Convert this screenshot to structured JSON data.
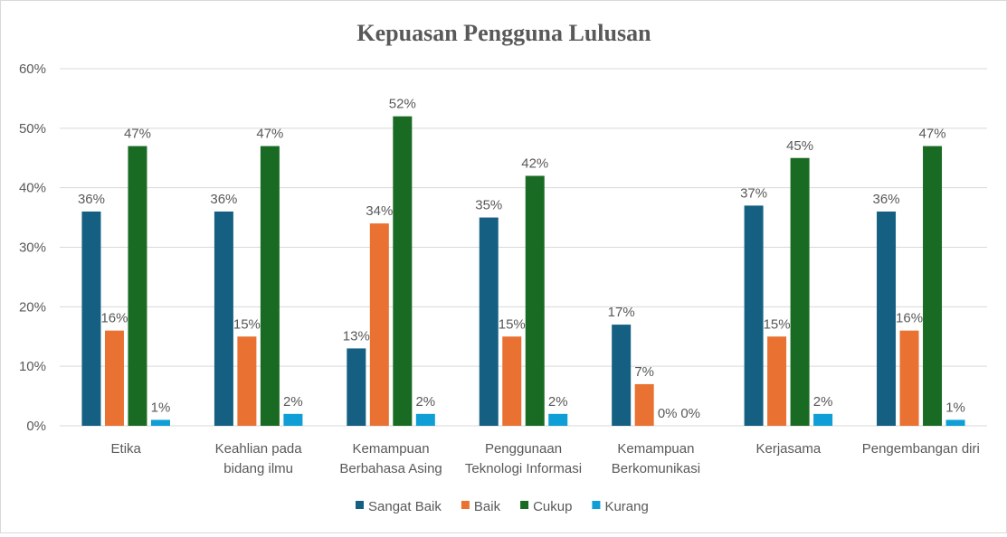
{
  "chart_data": {
    "type": "bar",
    "title": "Kepuasan Pengguna Lulusan",
    "categories": [
      [
        "Etika"
      ],
      [
        "Keahlian pada",
        "bidang ilmu"
      ],
      [
        "Kemampuan",
        "Berbahasa Asing"
      ],
      [
        "Penggunaan",
        "Teknologi Informasi"
      ],
      [
        "Kemampuan",
        "Berkomunikasi"
      ],
      [
        "Kerjasama"
      ],
      [
        "Pengembangan diri"
      ]
    ],
    "series": [
      {
        "name": "Sangat Baik",
        "color": "#156082",
        "values": [
          36,
          36,
          13,
          35,
          17,
          37,
          36
        ]
      },
      {
        "name": "Baik",
        "color": "#E97132",
        "values": [
          16,
          15,
          34,
          15,
          7,
          15,
          16
        ]
      },
      {
        "name": "Cukup",
        "color": "#196B24",
        "values": [
          47,
          47,
          52,
          42,
          0,
          45,
          47
        ]
      },
      {
        "name": "Kurang",
        "color": "#0F9ED5",
        "values": [
          1,
          2,
          2,
          2,
          0,
          2,
          1
        ]
      }
    ],
    "value_suffix": "%",
    "ylim": [
      0,
      60
    ],
    "yticks": [
      "0%",
      "10%",
      "20%",
      "30%",
      "40%",
      "50%",
      "60%"
    ],
    "grid": true,
    "legend": "bottom",
    "xlabel": "",
    "ylabel": ""
  }
}
